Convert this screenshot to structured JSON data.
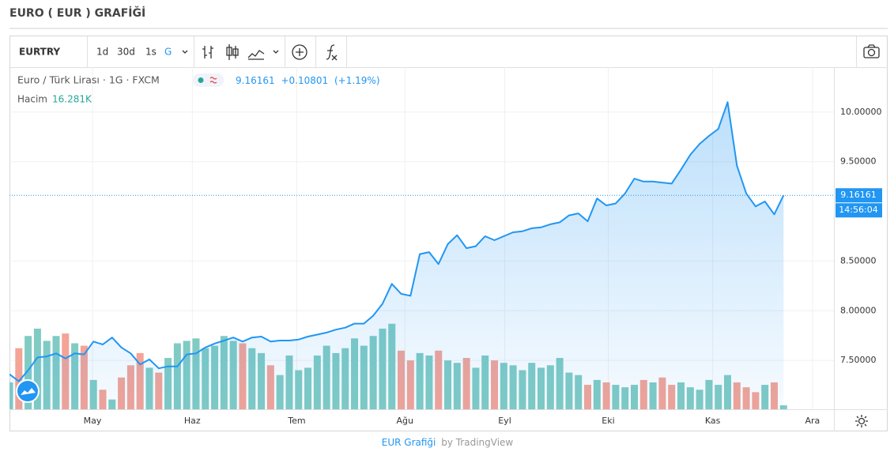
{
  "chart_data": {
    "type": "area",
    "title": "EURO ( EUR ) GRAFİĞİ",
    "symbol_title": "Euro / Türk Lirası · 1G · FXCM",
    "change": "+0.10801",
    "change_pct": "(+1.19%)",
    "volume_title": "Hacim",
    "timer": "14:56:04",
    "toolbar": {
      "symbol": "EURTRY",
      "intervals": [
        "1d",
        "30d",
        "1s",
        "G"
      ]
    },
    "footer": {
      "link": "EUR Grafiği",
      "by": "by TradingView"
    },
    "series": [
      {
        "color": "#2196f3",
        "values": [
          7.36,
          7.29,
          7.4,
          7.53,
          7.54,
          7.57,
          7.52,
          7.57,
          7.56,
          7.69,
          7.66,
          7.73,
          7.63,
          7.57,
          7.46,
          7.51,
          7.42,
          7.44,
          7.44,
          7.56,
          7.57,
          7.63,
          7.67,
          7.7,
          7.73,
          7.69,
          7.73,
          7.74,
          7.69,
          7.7,
          7.7,
          7.71,
          7.74,
          7.76,
          7.78,
          7.81,
          7.83,
          7.87,
          7.87,
          7.95,
          8.07,
          8.27,
          8.17,
          8.15,
          8.57,
          8.59,
          8.47,
          8.67,
          8.76,
          8.63,
          8.65,
          8.75,
          8.71,
          8.75,
          8.79,
          8.8,
          8.83,
          8.84,
          8.87,
          8.89,
          8.96,
          8.98,
          8.9,
          9.13,
          9.06,
          9.08,
          9.18,
          9.33,
          9.3,
          9.3,
          9.29,
          9.28,
          9.42,
          9.57,
          9.68,
          9.76,
          9.83,
          10.1,
          9.46,
          9.18,
          9.05,
          9.1,
          8.97,
          9.16161
        ]
      }
    ],
    "volume": {
      "up_color": "#80cbc4",
      "down_color": "#f4a397",
      "y2lim": [
        0,
        1400
      ],
      "last_label": "16.281K",
      "values": [
        110,
        250,
        300,
        330,
        280,
        300,
        310,
        270,
        260,
        120,
        80,
        40,
        130,
        180,
        230,
        170,
        150,
        210,
        270,
        280,
        290,
        250,
        260,
        300,
        280,
        270,
        250,
        230,
        180,
        140,
        220,
        160,
        170,
        220,
        260,
        230,
        250,
        290,
        260,
        300,
        330,
        350,
        240,
        200,
        230,
        220,
        240,
        200,
        190,
        210,
        170,
        220,
        200,
        190,
        180,
        160,
        190,
        170,
        180,
        210,
        150,
        140,
        100,
        120,
        110,
        100,
        90,
        100,
        120,
        110,
        130,
        100,
        110,
        90,
        80,
        120,
        100,
        140,
        110,
        90,
        70,
        100,
        110,
        16.281
      ]
    },
    "xlim": [
      0,
      88.4
    ],
    "xticks": [
      {
        "value": 8.9,
        "label": "May"
      },
      {
        "value": 19.6,
        "label": "Haz"
      },
      {
        "value": 30.8,
        "label": "Tem"
      },
      {
        "value": 42.4,
        "label": "Ağu"
      },
      {
        "value": 53.1,
        "label": "Eyl"
      },
      {
        "value": 64.2,
        "label": "Eki"
      },
      {
        "value": 75.4,
        "label": "Kas"
      },
      {
        "value": 86.1,
        "label": "Ara"
      }
    ],
    "ylim": [
      7.008,
      10.452
    ],
    "yticks": [
      {
        "value": 7.5,
        "label": "7.50000"
      },
      {
        "value": 8,
        "label": "8.00000"
      },
      {
        "value": 8.5,
        "label": "8.50000"
      },
      {
        "value": 9.5,
        "label": "9.50000"
      },
      {
        "value": 10,
        "label": "10.00000"
      }
    ],
    "grid": true
  }
}
